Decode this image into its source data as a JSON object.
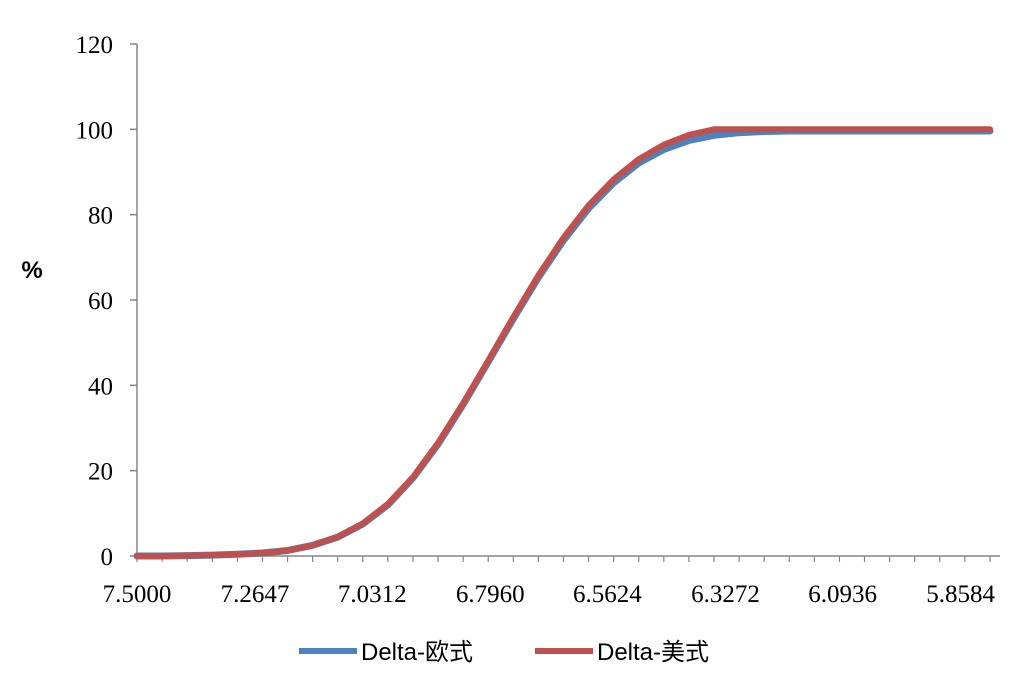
{
  "chart_data": {
    "type": "line",
    "ylabel": "%",
    "ylim": [
      0,
      120
    ],
    "yticks": [
      "0",
      "20",
      "40",
      "60",
      "80",
      "100",
      "120"
    ],
    "xlim": [
      7.5,
      5.78
    ],
    "x_reversed": true,
    "xticks": [
      "7.5000",
      "7.2647",
      "7.0312",
      "6.7960",
      "6.5624",
      "6.3272",
      "6.0936",
      "5.8584"
    ],
    "grid": false,
    "legend_position": "bottom",
    "series": [
      {
        "name": "Delta-欧式",
        "color": "#4F81BD",
        "x": [
          7.5,
          7.45,
          7.4,
          7.35,
          7.3,
          7.25,
          7.2,
          7.15,
          7.1,
          7.05,
          7.0,
          6.95,
          6.9,
          6.85,
          6.8,
          6.75,
          6.7,
          6.65,
          6.6,
          6.55,
          6.5,
          6.45,
          6.4,
          6.35,
          6.3,
          6.25,
          6.2,
          6.15,
          6.1,
          6.05,
          6.0,
          5.95,
          5.9,
          5.85,
          5.8
        ],
        "y": [
          0.0,
          0.0,
          0.1,
          0.2,
          0.4,
          0.7,
          1.3,
          2.5,
          4.4,
          7.5,
          12.0,
          18.3,
          26.2,
          35.5,
          45.5,
          55.6,
          65.3,
          74.0,
          81.5,
          87.5,
          92.1,
          95.3,
          97.4,
          98.6,
          99.2,
          99.5,
          99.6,
          99.6,
          99.6,
          99.6,
          99.6,
          99.6,
          99.6,
          99.6,
          99.6
        ]
      },
      {
        "name": "Delta-美式",
        "color": "#C0504D",
        "x": [
          7.5,
          7.45,
          7.4,
          7.35,
          7.3,
          7.25,
          7.2,
          7.15,
          7.1,
          7.05,
          7.0,
          6.95,
          6.9,
          6.85,
          6.8,
          6.75,
          6.7,
          6.65,
          6.6,
          6.55,
          6.5,
          6.45,
          6.4,
          6.35,
          6.3,
          6.25,
          6.2,
          6.15,
          6.1,
          6.05,
          6.0,
          5.95,
          5.9,
          5.85,
          5.8
        ],
        "y": [
          0.0,
          0.0,
          0.1,
          0.2,
          0.4,
          0.7,
          1.3,
          2.5,
          4.5,
          7.6,
          12.2,
          18.5,
          26.5,
          35.8,
          45.8,
          56.0,
          65.8,
          74.6,
          82.2,
          88.3,
          93.0,
          96.4,
          98.7,
          100.0,
          100.0,
          100.0,
          100.0,
          100.0,
          100.0,
          100.0,
          100.0,
          100.0,
          100.0,
          100.0,
          100.0
        ]
      }
    ]
  }
}
